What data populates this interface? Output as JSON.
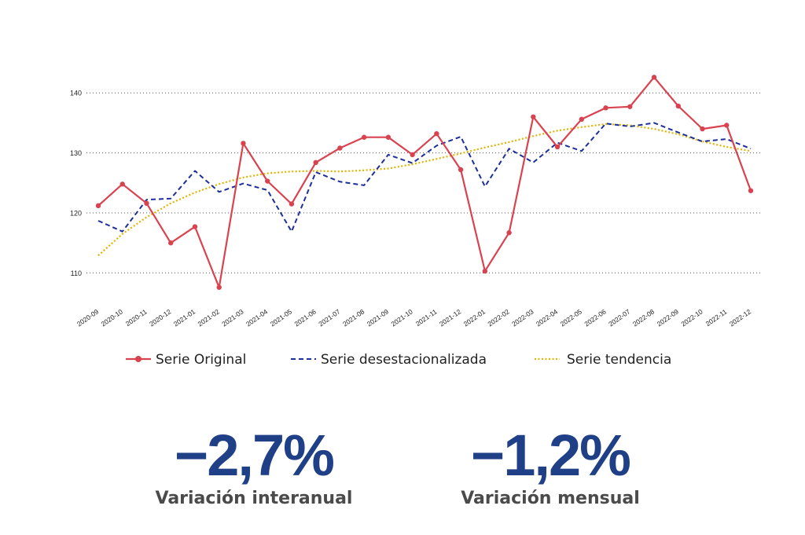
{
  "chart_data": {
    "type": "line",
    "categories": [
      "2020-09",
      "2020-10",
      "2020-11",
      "2020-12",
      "2021-01",
      "2021-02",
      "2021-03",
      "2021-04",
      "2021-05",
      "2021-06",
      "2021-07",
      "2021-08",
      "2021-09",
      "2021-10",
      "2021-11",
      "2021-12",
      "2022-01",
      "2022-02",
      "2022-03",
      "2022-04",
      "2022-05",
      "2022-06",
      "2022-07",
      "2022-08",
      "2022-09",
      "2022-10",
      "2022-11",
      "2022-12"
    ],
    "yticks": [
      110,
      120,
      130,
      140
    ],
    "ylim": [
      106,
      145
    ],
    "grid": true,
    "legend_position": "bottom",
    "series": [
      {
        "name": "Serie Original",
        "color": "#d9434f",
        "style": "solid-markers",
        "values": [
          121.2,
          124.8,
          121.6,
          115.0,
          117.7,
          107.6,
          131.6,
          125.3,
          121.5,
          128.4,
          130.8,
          132.6,
          132.6,
          129.7,
          133.2,
          127.2,
          110.3,
          116.7,
          136.0,
          131.0,
          135.6,
          137.5,
          137.7,
          142.6,
          137.8,
          134.0,
          134.6,
          123.7
        ]
      },
      {
        "name": "Serie desestacionalizada",
        "color": "#1c2f9a",
        "style": "dashed",
        "values": [
          118.7,
          116.9,
          122.2,
          122.4,
          127.0,
          123.5,
          124.9,
          123.8,
          116.9,
          126.8,
          125.2,
          124.6,
          129.7,
          128.3,
          131.2,
          132.7,
          124.4,
          130.7,
          128.4,
          131.7,
          130.3,
          134.9,
          134.4,
          135.0,
          133.4,
          131.9,
          132.3,
          130.7
        ]
      },
      {
        "name": "Serie tendencia",
        "color": "#e0b400",
        "style": "dotted",
        "values": [
          112.9,
          116.5,
          119.3,
          121.6,
          123.4,
          124.8,
          125.9,
          126.6,
          126.9,
          127.0,
          126.9,
          127.1,
          127.4,
          128.1,
          129.0,
          129.9,
          130.9,
          131.8,
          132.8,
          133.7,
          134.3,
          134.8,
          134.6,
          134.0,
          133.1,
          131.9,
          131.0,
          130.3
        ]
      }
    ]
  },
  "kpis": [
    {
      "value": "−2,7%",
      "label": "Variación interanual"
    },
    {
      "value": "−1,2%",
      "label": "Variación mensual"
    }
  ]
}
